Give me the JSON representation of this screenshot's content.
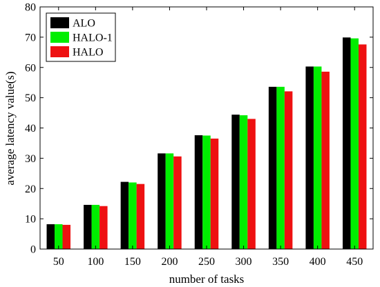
{
  "chart_data": {
    "type": "bar",
    "title": "",
    "xlabel": "number of tasks",
    "ylabel": "average latency value(s)",
    "categories": [
      "50",
      "100",
      "150",
      "200",
      "250",
      "300",
      "350",
      "400",
      "450"
    ],
    "series": [
      {
        "name": "ALO",
        "color": "#000000",
        "values": [
          8.2,
          14.6,
          22.2,
          31.6,
          37.6,
          44.4,
          53.6,
          60.3,
          69.9
        ]
      },
      {
        "name": "HALO-1",
        "color": "#00ee00",
        "values": [
          8.2,
          14.6,
          22.0,
          31.6,
          37.5,
          44.2,
          53.6,
          60.3,
          69.6
        ]
      },
      {
        "name": "HALO",
        "color": "#ee1111",
        "values": [
          8.0,
          14.2,
          21.5,
          30.6,
          36.5,
          43.0,
          52.1,
          58.6,
          67.6
        ]
      }
    ],
    "ylim": [
      0,
      80
    ],
    "yticks": [
      0,
      10,
      20,
      30,
      40,
      50,
      60,
      70,
      80
    ],
    "grid": false,
    "legend_position": "top-left"
  }
}
